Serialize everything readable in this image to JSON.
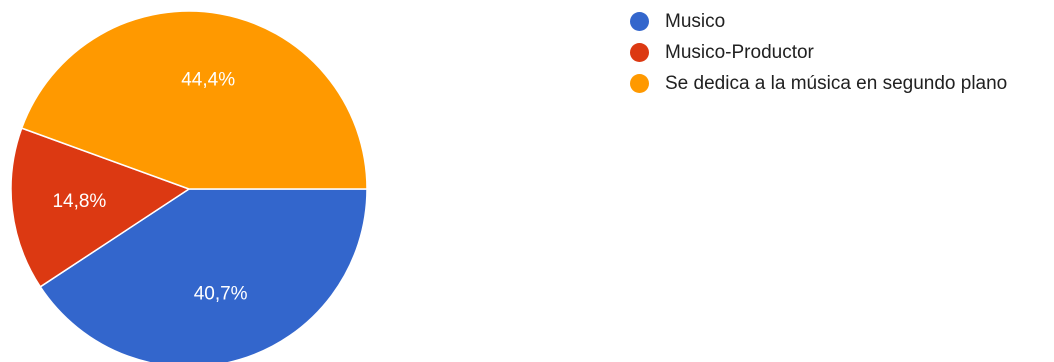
{
  "chart_data": {
    "type": "pie",
    "title": "",
    "slices": [
      {
        "label": "Musico",
        "value": 40.7,
        "display": "40,7%",
        "color": "#3366cc"
      },
      {
        "label": "Musico-Productor",
        "value": 14.8,
        "display": "14,8%",
        "color": "#dc3912"
      },
      {
        "label": "Se dedica a la música en segundo plano",
        "value": 44.4,
        "display": "44,4%",
        "color": "#ff9900"
      }
    ],
    "start_angle_deg": 90,
    "direction": "clockwise",
    "legend_position": "right"
  }
}
